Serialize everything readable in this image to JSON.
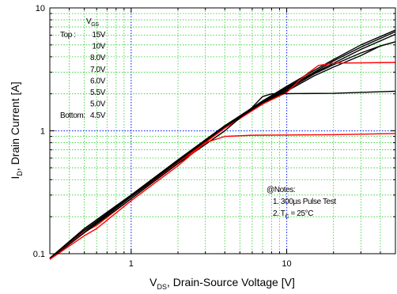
{
  "chart_data": {
    "type": "line",
    "xscale": "log",
    "yscale": "log",
    "xlim": [
      0.3,
      50
    ],
    "ylim": [
      0.1,
      10
    ],
    "grid": true,
    "xlabel": {
      "main": "V",
      "sub": "DS",
      "rest": ", Drain-Source Voltage [V]"
    },
    "ylabel": {
      "main": "I",
      "sub": "D",
      "rest": ", Drain Current [A]"
    },
    "xticks": [
      {
        "value": 1,
        "label": "1"
      },
      {
        "value": 10,
        "label": "10"
      }
    ],
    "yticks": [
      {
        "value": 0.1,
        "label": "0.1"
      },
      {
        "value": 1,
        "label": "1"
      },
      {
        "value": 10,
        "label": "10"
      }
    ],
    "legend": {
      "title_main": "V",
      "title_sub": "GS",
      "rows": [
        {
          "prefix": "Top :",
          "value": "15V"
        },
        {
          "prefix": "",
          "value": "10V"
        },
        {
          "prefix": "",
          "value": "8.0V"
        },
        {
          "prefix": "",
          "value": "7.0V"
        },
        {
          "prefix": "",
          "value": "6.0V"
        },
        {
          "prefix": "",
          "value": "5.5V"
        },
        {
          "prefix": "",
          "value": "5.0V"
        },
        {
          "prefix": "Bottom:",
          "value": "4.5V"
        }
      ]
    },
    "notes": {
      "heading": "@Notes:",
      "line1": "1. 300µs Pulse Test",
      "line2_pre": "2. T",
      "line2_sub": "C",
      "line2_post": " = 25°C"
    },
    "series": [
      {
        "color": "#000000",
        "points": [
          [
            0.3,
            0.092
          ],
          [
            0.5,
            0.16
          ],
          [
            1,
            0.3
          ],
          [
            2,
            0.58
          ],
          [
            4,
            1.1
          ],
          [
            7,
            1.75
          ],
          [
            10,
            2.3
          ],
          [
            15,
            3.1
          ],
          [
            20,
            3.8
          ],
          [
            30,
            5.0
          ],
          [
            50,
            6.6
          ]
        ]
      },
      {
        "color": "#000000",
        "points": [
          [
            0.3,
            0.092
          ],
          [
            0.5,
            0.16
          ],
          [
            1,
            0.3
          ],
          [
            2,
            0.58
          ],
          [
            4,
            1.1
          ],
          [
            7,
            1.72
          ],
          [
            10,
            2.25
          ],
          [
            15,
            3.0
          ],
          [
            20,
            3.7
          ],
          [
            30,
            4.8
          ],
          [
            50,
            6.4
          ]
        ]
      },
      {
        "color": "#000000",
        "points": [
          [
            0.3,
            0.092
          ],
          [
            0.5,
            0.155
          ],
          [
            1,
            0.295
          ],
          [
            2,
            0.57
          ],
          [
            4,
            1.08
          ],
          [
            7,
            1.7
          ],
          [
            10,
            2.2
          ],
          [
            15,
            2.95
          ],
          [
            20,
            3.55
          ],
          [
            30,
            4.6
          ],
          [
            50,
            6.1
          ]
        ]
      },
      {
        "color": "#000000",
        "points": [
          [
            0.3,
            0.092
          ],
          [
            0.5,
            0.155
          ],
          [
            1,
            0.29
          ],
          [
            2,
            0.56
          ],
          [
            4,
            1.07
          ],
          [
            7,
            1.68
          ],
          [
            10,
            2.15
          ],
          [
            15,
            2.9
          ],
          [
            20,
            3.45
          ],
          [
            30,
            4.3
          ],
          [
            40,
            4.9
          ],
          [
            50,
            5.3
          ]
        ]
      },
      {
        "color": "#000000",
        "points": [
          [
            0.3,
            0.09
          ],
          [
            0.5,
            0.15
          ],
          [
            1,
            0.29
          ],
          [
            2,
            0.55
          ],
          [
            4,
            1.06
          ],
          [
            7,
            1.65
          ],
          [
            10,
            2.1
          ],
          [
            15,
            2.8
          ],
          [
            20,
            3.3
          ],
          [
            30,
            4.1
          ],
          [
            40,
            4.9
          ],
          [
            50,
            5.3
          ]
        ]
      },
      {
        "color": "#ff0000",
        "points": [
          [
            0.3,
            0.09
          ],
          [
            0.5,
            0.15
          ],
          [
            0.6,
            0.17
          ],
          [
            1,
            0.28
          ],
          [
            2,
            0.55
          ],
          [
            4,
            1.05
          ],
          [
            7,
            1.65
          ],
          [
            10,
            2.05
          ],
          [
            13,
            2.8
          ],
          [
            16,
            3.4
          ],
          [
            20,
            3.55
          ],
          [
            50,
            3.6
          ]
        ]
      },
      {
        "color": "#000000",
        "points": [
          [
            0.3,
            0.09
          ],
          [
            0.5,
            0.148
          ],
          [
            1,
            0.28
          ],
          [
            2,
            0.54
          ],
          [
            4,
            1.0
          ],
          [
            6,
            1.55
          ],
          [
            7,
            1.9
          ],
          [
            8,
            2.0
          ],
          [
            20,
            2.02
          ],
          [
            50,
            2.1
          ]
        ]
      },
      {
        "color": "#ff0000",
        "points": [
          [
            0.3,
            0.09
          ],
          [
            0.5,
            0.14
          ],
          [
            0.6,
            0.16
          ],
          [
            1,
            0.27
          ],
          [
            2,
            0.52
          ],
          [
            3,
            0.8
          ],
          [
            4,
            0.9
          ],
          [
            6,
            0.92
          ],
          [
            20,
            0.93
          ],
          [
            50,
            0.95
          ]
        ]
      }
    ]
  }
}
